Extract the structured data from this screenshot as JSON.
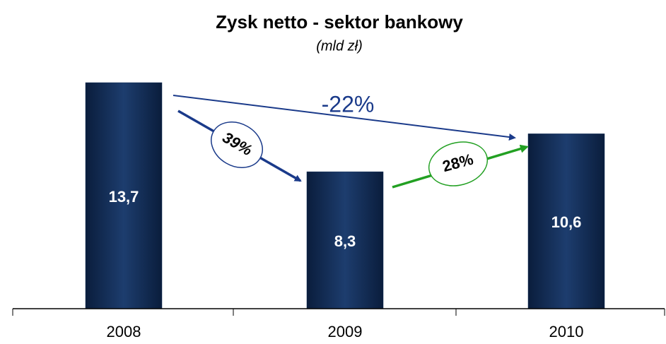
{
  "chart_data": {
    "type": "bar",
    "title": "Zysk netto - sektor bankowy",
    "subtitle": "(mld zł)",
    "categories": [
      "2008",
      "2009",
      "2010"
    ],
    "values": [
      13.7,
      8.3,
      10.6
    ],
    "value_labels": [
      "13,7",
      "8,3",
      "10,6"
    ],
    "color": "#0f2b55",
    "annotations": [
      "-22%",
      "39%",
      "28%"
    ]
  }
}
